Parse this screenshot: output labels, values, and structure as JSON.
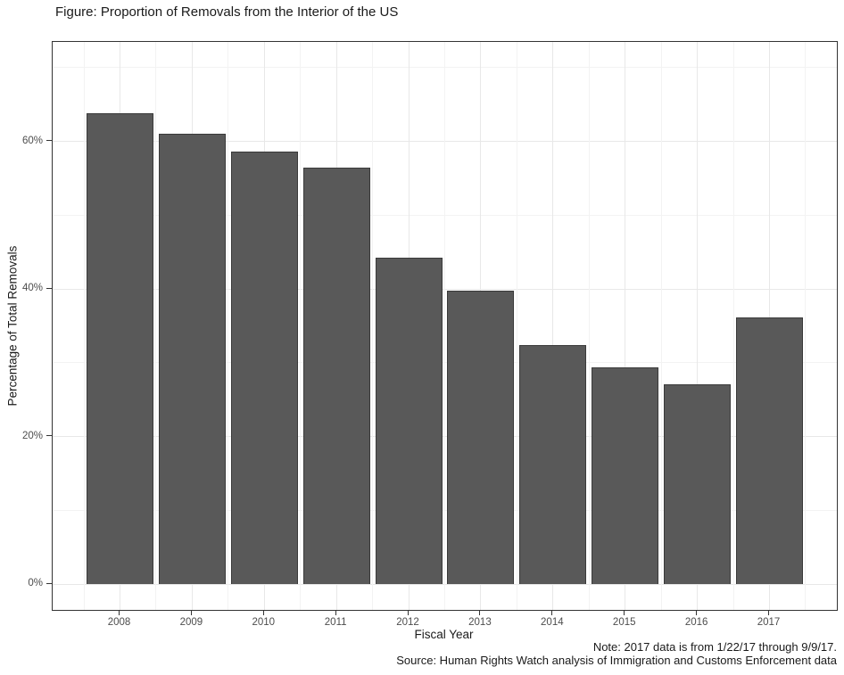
{
  "title": "Figure: Proportion of Removals from the Interior of the US",
  "notes": {
    "line1": "Note: 2017 data is from 1/22/17 through 9/9/17.",
    "line2": "Source: Human Rights Watch analysis of Immigration and Customs Enforcement data"
  },
  "chart_data": {
    "type": "bar",
    "title": "Figure: Proportion of Removals from the Interior of the US",
    "categories": [
      "2008",
      "2009",
      "2010",
      "2011",
      "2012",
      "2013",
      "2014",
      "2015",
      "2016",
      "2017"
    ],
    "values": [
      63.8,
      61.0,
      58.6,
      56.4,
      44.2,
      39.8,
      32.4,
      29.4,
      27.1,
      36.1
    ],
    "xlabel": "Fiscal Year",
    "ylabel": "Percentage of Total Removals",
    "y_tick_labels": [
      "0%",
      "20%",
      "40%",
      "60%"
    ],
    "y_tick_values": [
      0,
      20,
      40,
      60
    ],
    "y_minor_values": [
      10,
      30,
      50,
      70
    ],
    "ylim": [
      -3.5,
      73.5
    ],
    "grid": "major and minor, light gray on white",
    "legend": "none",
    "colors": {
      "bar_fill": "#595959",
      "bar_border": "#3a3a3a",
      "grid_major": "#e8e8e8",
      "grid_minor": "#f3f3f3",
      "panel_border": "#333333",
      "tick_mark": "#333333",
      "tick_label": "#4d4d4d",
      "text": "#1a1a1a",
      "background": "#ffffff"
    }
  }
}
